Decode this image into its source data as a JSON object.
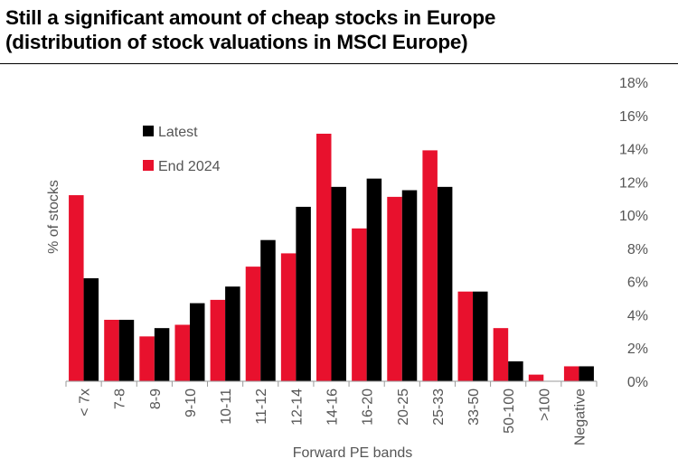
{
  "title_line1": "Still a significant amount of cheap stocks in Europe",
  "title_line2": "(distribution of stock valuations in MSCI Europe)",
  "chart_data": {
    "type": "bar",
    "categories": [
      "< 7x",
      "7-8",
      "8-9",
      "9-10",
      "10-11",
      "11-12",
      "12-14",
      "14-16",
      "16-20",
      "20-25",
      "25-33",
      "33-50",
      "50-100",
      ">100",
      "Negative"
    ],
    "series": [
      {
        "name": "End 2024",
        "color": "#e8112d",
        "values": [
          11.2,
          3.7,
          2.7,
          3.4,
          4.9,
          6.9,
          7.7,
          14.9,
          9.2,
          11.1,
          13.9,
          5.4,
          3.2,
          0.4,
          0.9
        ]
      },
      {
        "name": "Latest",
        "color": "#000000",
        "values": [
          6.2,
          3.7,
          3.2,
          4.7,
          5.7,
          8.5,
          10.5,
          11.7,
          12.2,
          11.5,
          11.7,
          5.4,
          1.2,
          0.0,
          0.9
        ]
      }
    ],
    "xlabel": "Forward PE bands",
    "ylabel": "% of stocks",
    "ylim": [
      0,
      18
    ],
    "yticks": [
      "0%",
      "2%",
      "4%",
      "6%",
      "8%",
      "10%",
      "12%",
      "14%",
      "16%",
      "18%"
    ],
    "ytick_values": [
      0,
      2,
      4,
      6,
      8,
      10,
      12,
      14,
      16,
      18
    ],
    "legend": [
      {
        "label": "Latest",
        "color": "#000000"
      },
      {
        "label": "End 2024",
        "color": "#e8112d"
      }
    ],
    "grid": false
  }
}
